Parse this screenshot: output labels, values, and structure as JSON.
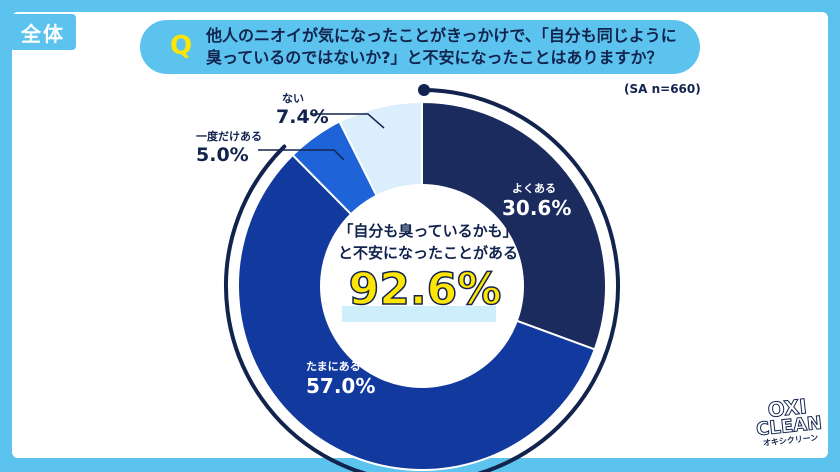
{
  "header": {
    "tag": "全体",
    "q_mark": "Q",
    "question_line1": "他人のニオイが気になったことがきっかけで、「自分も同じように",
    "question_line2": "臭っているのではないか?」と不安になったことはありますか？",
    "sample": "(SA n=660)"
  },
  "center": {
    "line1": "「自分も臭っているかも」",
    "line2": "と不安になったことがある",
    "total": "92.6%"
  },
  "labels": [
    {
      "cat": "よくある",
      "val": "30.6%"
    },
    {
      "cat": "たまにある",
      "val": "57.0%"
    },
    {
      "cat": "一度だけある",
      "val": "5.0%"
    },
    {
      "cat": "ない",
      "val": "7.4%"
    }
  ],
  "brand": {
    "line1": "OXI",
    "line2": "CLEAN",
    "line3": "オキシクリーン"
  },
  "colors": {
    "often": "#1b2b5e",
    "sometimes": "#12399e",
    "once": "#1f63d9",
    "never": "#dbeefb",
    "frame": "#5cc3ef",
    "accent": "#ffe600"
  },
  "chart_data": {
    "type": "pie",
    "categories": [
      "よくある",
      "たまにある",
      "一度だけある",
      "ない"
    ],
    "values": [
      30.6,
      57.0,
      5.0,
      7.4
    ],
    "title": "他人のニオイが気になったことがきっかけで、「自分も同じように臭っているのではないか?」と不安になったことはありますか？",
    "center_value": 92.6
  }
}
